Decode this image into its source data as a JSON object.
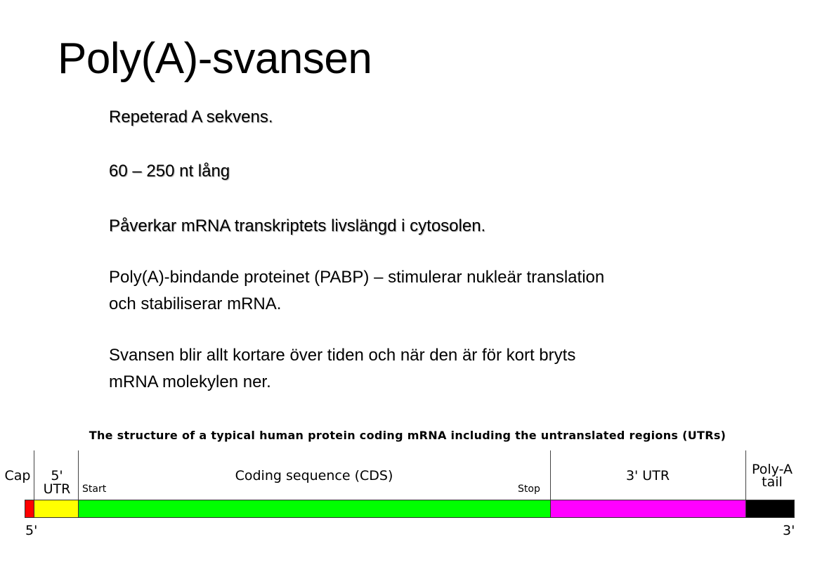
{
  "slide": {
    "title": "Poly(A)-svansen",
    "lines": [
      "Repeterad A sekvens.",
      "60 – 250 nt lång",
      "Påverkar mRNA transkriptets livslängd i cytosolen.",
      "Poly(A)-bindande proteinet (PABP) – stimulerar nukleär translation",
      "och stabiliserar mRNA.",
      "Svansen blir allt kortare över tiden och när den är för kort bryts",
      "mRNA molekylen ner."
    ]
  },
  "diagram": {
    "title": "The structure of a typical human protein coding mRNA including the untranslated regions (UTRs)",
    "segments": [
      {
        "label": "Cap",
        "color": "#ff0000"
      },
      {
        "label": "5' UTR",
        "color": "#ffff00"
      },
      {
        "label": "Coding sequence (CDS)",
        "color": "#00ff00"
      },
      {
        "label": "3' UTR",
        "color": "#ff00ff"
      },
      {
        "label": "Poly-A",
        "label2": "tail",
        "color": "#000000"
      }
    ],
    "start_label": "Start",
    "stop_label": "Stop",
    "five_prime": "5'",
    "three_prime": "3'"
  }
}
